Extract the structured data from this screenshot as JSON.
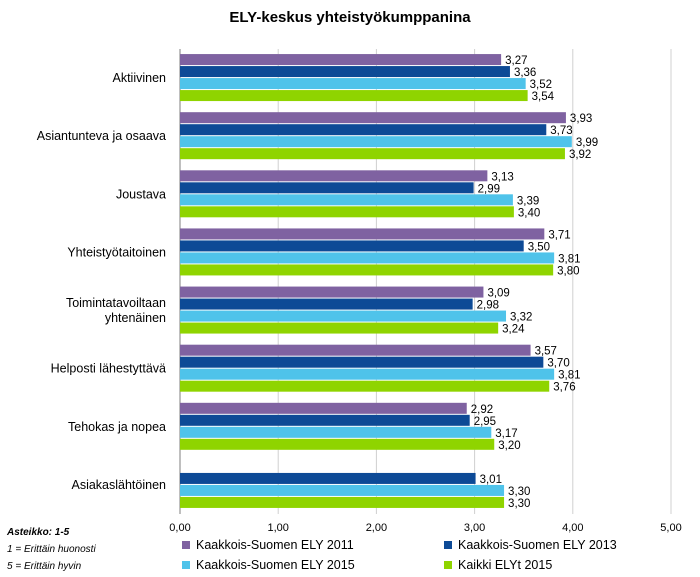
{
  "chart_data": {
    "type": "bar",
    "orientation": "horizontal",
    "title": "ELY-keskus yhteistyökumppanina",
    "categories": [
      "Aktiivinen",
      "Asiantunteva ja osaava",
      "Joustava",
      "Yhteistyötaitoinen",
      "Toimintatavoiltaan yhtenäinen",
      "Helposti lähestyttävä",
      "Tehokas ja nopea",
      "Asiakaslähtöinen"
    ],
    "series": [
      {
        "name": "Kaakkois-Suomen ELY 2011",
        "color": "#7f62a1",
        "values": [
          3.27,
          3.93,
          3.13,
          3.71,
          3.09,
          3.57,
          2.92,
          null
        ],
        "labels": [
          "3,27",
          "3,93",
          "3,13",
          "3,71",
          "3,09",
          "3,57",
          "2,92",
          ""
        ]
      },
      {
        "name": "Kaakkois-Suomen ELY 2013",
        "color": "#0d4a96",
        "values": [
          3.36,
          3.73,
          2.99,
          3.5,
          2.98,
          3.7,
          2.95,
          3.01
        ],
        "labels": [
          "3,36",
          "3,73",
          "2,99",
          "3,50",
          "2,98",
          "3,70",
          "2,95",
          "3,01"
        ]
      },
      {
        "name": "Kaakkois-Suomen ELY 2015",
        "color": "#4fc3ea",
        "values": [
          3.52,
          3.99,
          3.39,
          3.81,
          3.32,
          3.81,
          3.17,
          3.3
        ],
        "labels": [
          "3,52",
          "3,99",
          "3,39",
          "3,81",
          "3,32",
          "3,81",
          "3,17",
          "3,30"
        ]
      },
      {
        "name": "Kaikki ELYt 2015",
        "color": "#8fd400",
        "values": [
          3.54,
          3.92,
          3.4,
          3.8,
          3.24,
          3.76,
          3.2,
          3.3
        ],
        "labels": [
          "3,54",
          "3,92",
          "3,40",
          "3,80",
          "3,24",
          "3,76",
          "3,20",
          "3,30"
        ]
      }
    ],
    "xlim": [
      0,
      5
    ],
    "xticks": [
      0,
      1,
      2,
      3,
      4,
      5
    ],
    "xtick_labels": [
      "0,00",
      "1,00",
      "2,00",
      "3,00",
      "4,00",
      "5,00"
    ],
    "grid": "vertical",
    "legend_position": "bottom"
  },
  "scale_note": {
    "head": "Asteikko: 1-5",
    "line1": "1 = Erittäin huonosti",
    "line2": "5 = Erittäin hyvin"
  }
}
